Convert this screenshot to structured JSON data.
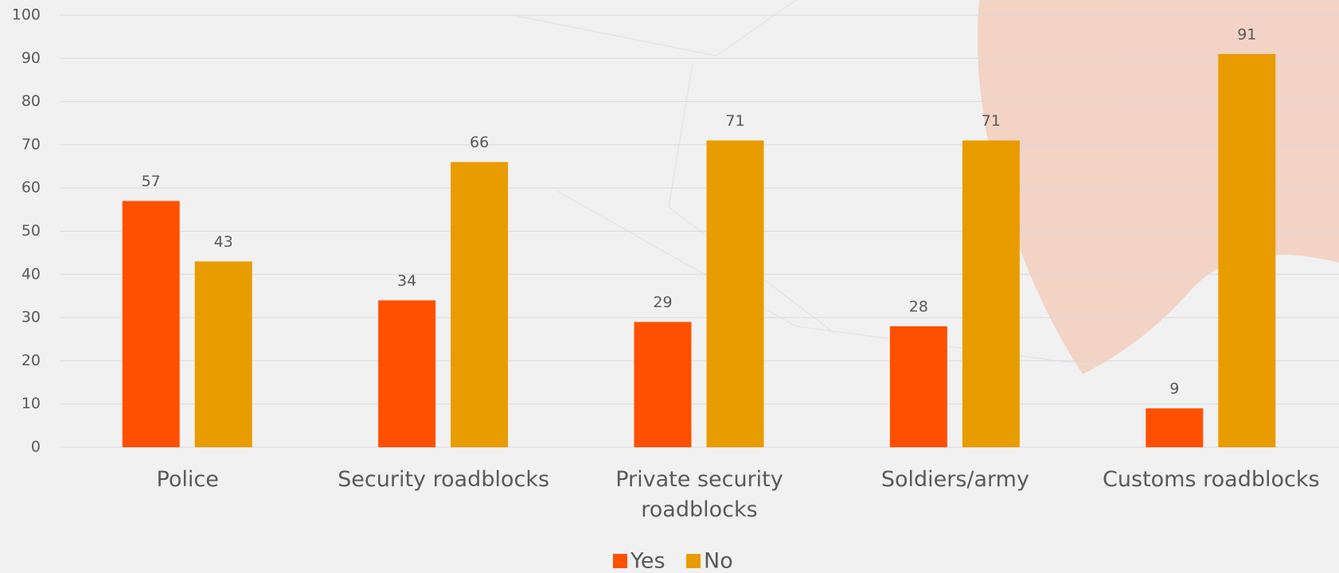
{
  "chart_data": {
    "type": "bar",
    "categories": [
      "Police",
      "Security roadblocks",
      "Private security roadblocks",
      "Soldiers/army",
      "Customs roadblocks"
    ],
    "series": [
      {
        "name": "Yes",
        "color": "#ff5000",
        "values": [
          57,
          34,
          29,
          28,
          9
        ]
      },
      {
        "name": "No",
        "color": "#e89c00",
        "values": [
          43,
          66,
          71,
          71,
          91
        ]
      }
    ],
    "ylim": [
      0,
      100
    ],
    "yticks": [
      0,
      10,
      20,
      30,
      40,
      50,
      60,
      70,
      80,
      90,
      100
    ],
    "grid": true,
    "legend": "bottom"
  }
}
